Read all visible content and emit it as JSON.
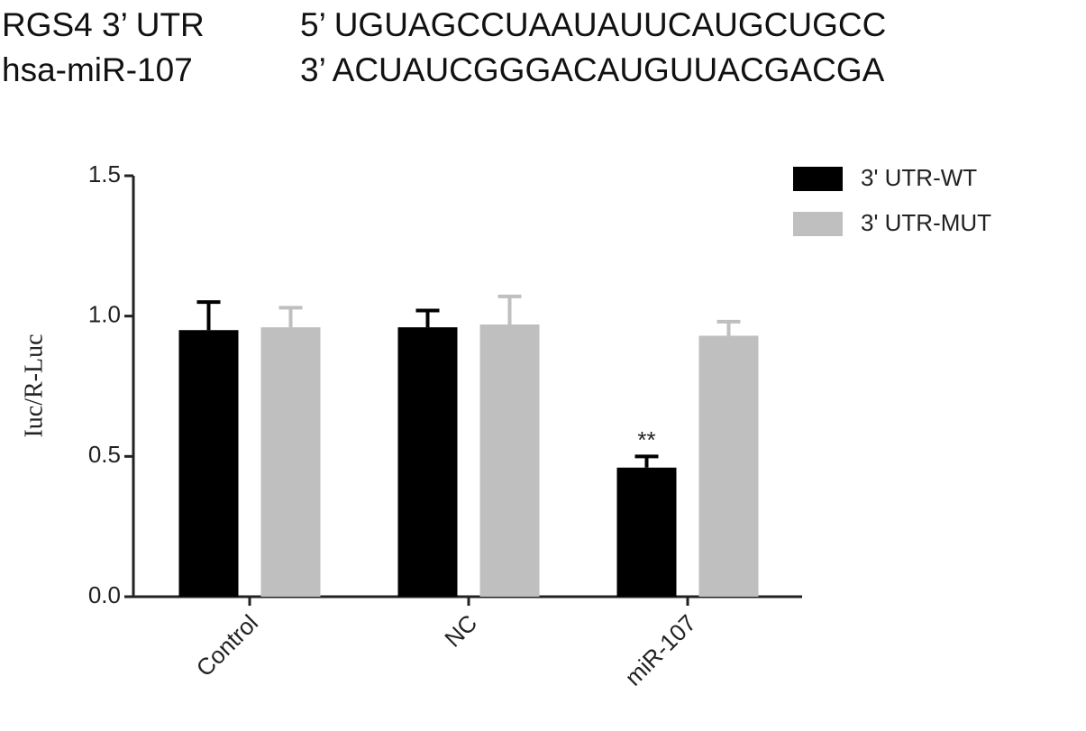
{
  "header": {
    "rows": [
      {
        "label": "RGS4 3’ UTR",
        "sequence": "5’ UGUAGCCUAAUAUUCAUGCUGCC"
      },
      {
        "label": "hsa-miR-107",
        "sequence": "3’ ACUAUCGGGACAUGUUACGACGA"
      }
    ]
  },
  "chart_data": {
    "type": "bar",
    "y_label": "Iuc/R-Luc",
    "categories": [
      "Control",
      "NC",
      "miR-107"
    ],
    "series": [
      {
        "name": "3' UTR-WT",
        "color": "#000000",
        "values": [
          0.95,
          0.96,
          0.46
        ],
        "errors": [
          0.1,
          0.06,
          0.04
        ]
      },
      {
        "name": "3' UTR-MUT",
        "color": "#bfbfbf",
        "values": [
          0.96,
          0.97,
          0.93
        ],
        "errors": [
          0.07,
          0.1,
          0.05
        ]
      }
    ],
    "annotation": "**",
    "ylim": [
      0,
      1.5
    ],
    "yticks": [
      {
        "value": 0,
        "label": "0.0"
      },
      0.5,
      {
        "value": 1,
        "label": "1.0"
      },
      1.5
    ],
    "legend": "upper right"
  }
}
